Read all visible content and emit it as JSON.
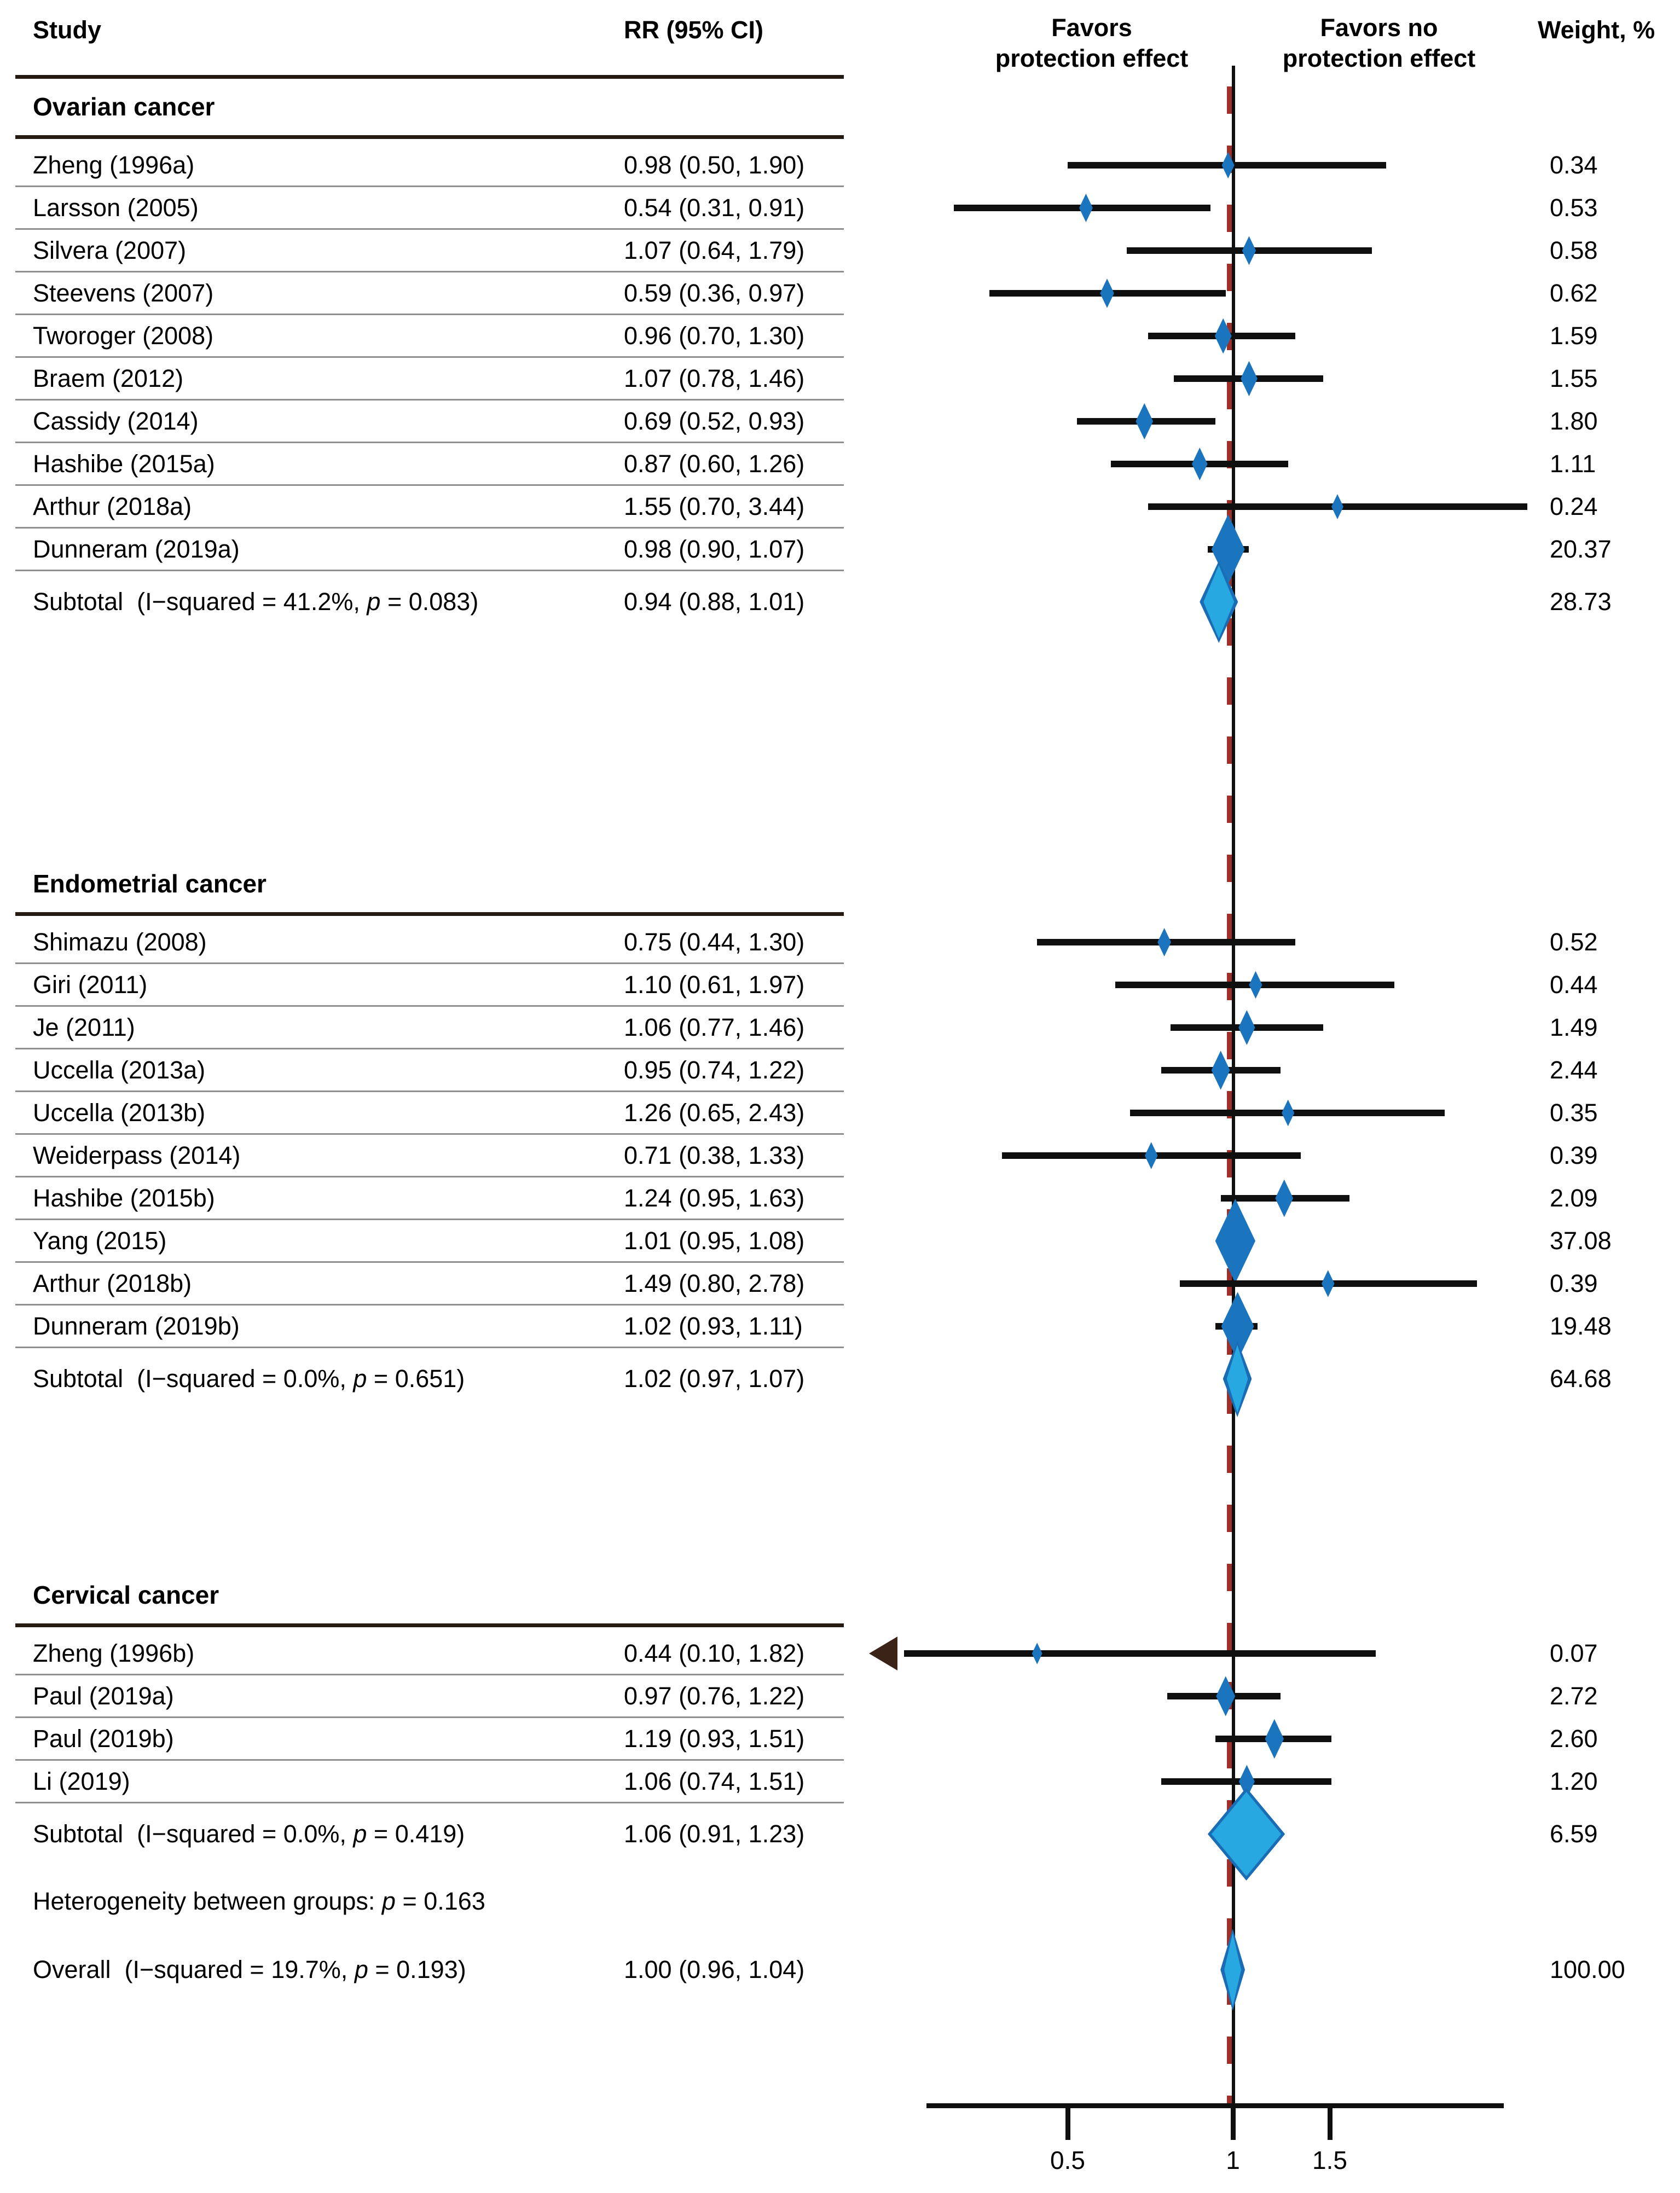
{
  "header": {
    "study": "Study",
    "rr": "RR (95% CI)",
    "favors_left1": "Favors",
    "favors_left2": "protection effect",
    "favors_right1": "Favors no",
    "favors_right2": "protection effect",
    "weight": "Weight, %"
  },
  "footer": {
    "heterogeneity": "Heterogeneity between groups: <i>p</i> = 0.163",
    "overall_label": "Overall  (I−squared = 19.7%, <i>p</i> = 0.193)",
    "overall_rr_text": "1.00 (0.96, 1.04)",
    "overall_weight": "100.00"
  },
  "chart_data": {
    "type": "scatter",
    "variant": "forest-plot",
    "xscale": "log",
    "xlim_drawn": [
      0.28,
      3.11
    ],
    "axis": {
      "ticks": [
        "0.5",
        "1",
        "1.5"
      ],
      "tick_values": [
        0.5,
        1,
        1.5
      ]
    },
    "refline": 1.0,
    "groups": [
      {
        "name": "Ovarian cancer",
        "studies": [
          {
            "label": "Zheng (1996a)",
            "rr_text": "0.98 (0.50, 1.90)",
            "rr": 0.98,
            "lo": 0.5,
            "hi": 1.9,
            "weight": "0.34"
          },
          {
            "label": "Larsson (2005)",
            "rr_text": "0.54 (0.31, 0.91)",
            "rr": 0.54,
            "lo": 0.31,
            "hi": 0.91,
            "weight": "0.53"
          },
          {
            "label": "Silvera (2007)",
            "rr_text": "1.07 (0.64, 1.79)",
            "rr": 1.07,
            "lo": 0.64,
            "hi": 1.79,
            "weight": "0.58"
          },
          {
            "label": "Steevens (2007)",
            "rr_text": "0.59 (0.36, 0.97)",
            "rr": 0.59,
            "lo": 0.36,
            "hi": 0.97,
            "weight": "0.62"
          },
          {
            "label": "Tworoger (2008)",
            "rr_text": "0.96 (0.70, 1.30)",
            "rr": 0.96,
            "lo": 0.7,
            "hi": 1.3,
            "weight": "1.59"
          },
          {
            "label": "Braem (2012)",
            "rr_text": "1.07 (0.78, 1.46)",
            "rr": 1.07,
            "lo": 0.78,
            "hi": 1.46,
            "weight": "1.55"
          },
          {
            "label": "Cassidy (2014)",
            "rr_text": "0.69 (0.52, 0.93)",
            "rr": 0.69,
            "lo": 0.52,
            "hi": 0.93,
            "weight": "1.80"
          },
          {
            "label": "Hashibe (2015a)",
            "rr_text": "0.87 (0.60, 1.26)",
            "rr": 0.87,
            "lo": 0.6,
            "hi": 1.26,
            "weight": "1.11"
          },
          {
            "label": "Arthur (2018a)",
            "rr_text": "1.55 (0.70, 3.44)",
            "rr": 1.55,
            "lo": 0.7,
            "hi": 3.44,
            "weight": "0.24"
          },
          {
            "label": "Dunneram (2019a)",
            "rr_text": "0.98 (0.90, 1.07)",
            "rr": 0.98,
            "lo": 0.9,
            "hi": 1.07,
            "weight": "20.37"
          }
        ],
        "subtotal": {
          "label": "Subtotal  (I−squared = 41.2%, <i>p</i> = 0.083)",
          "rr_text": "0.94 (0.88, 1.01)",
          "rr": 0.94,
          "lo": 0.88,
          "hi": 1.01,
          "weight": "28.73"
        }
      },
      {
        "name": "Endometrial cancer",
        "studies": [
          {
            "label": "Shimazu (2008)",
            "rr_text": "0.75 (0.44, 1.30)",
            "rr": 0.75,
            "lo": 0.44,
            "hi": 1.3,
            "weight": "0.52"
          },
          {
            "label": "Giri (2011)",
            "rr_text": "1.10 (0.61, 1.97)",
            "rr": 1.1,
            "lo": 0.61,
            "hi": 1.97,
            "weight": "0.44"
          },
          {
            "label": "Je (2011)",
            "rr_text": "1.06 (0.77, 1.46)",
            "rr": 1.06,
            "lo": 0.77,
            "hi": 1.46,
            "weight": "1.49"
          },
          {
            "label": "Uccella (2013a)",
            "rr_text": "0.95 (0.74, 1.22)",
            "rr": 0.95,
            "lo": 0.74,
            "hi": 1.22,
            "weight": "2.44"
          },
          {
            "label": "Uccella (2013b)",
            "rr_text": "1.26 (0.65, 2.43)",
            "rr": 1.26,
            "lo": 0.65,
            "hi": 2.43,
            "weight": "0.35"
          },
          {
            "label": "Weiderpass (2014)",
            "rr_text": "0.71 (0.38, 1.33)",
            "rr": 0.71,
            "lo": 0.38,
            "hi": 1.33,
            "weight": "0.39"
          },
          {
            "label": "Hashibe (2015b)",
            "rr_text": "1.24 (0.95, 1.63)",
            "rr": 1.24,
            "lo": 0.95,
            "hi": 1.63,
            "weight": "2.09"
          },
          {
            "label": "Yang (2015)",
            "rr_text": "1.01 (0.95, 1.08)",
            "rr": 1.01,
            "lo": 0.95,
            "hi": 1.08,
            "weight": "37.08"
          },
          {
            "label": "Arthur (2018b)",
            "rr_text": "1.49 (0.80, 2.78)",
            "rr": 1.49,
            "lo": 0.8,
            "hi": 2.78,
            "weight": "0.39"
          },
          {
            "label": "Dunneram (2019b)",
            "rr_text": "1.02 (0.93, 1.11)",
            "rr": 1.02,
            "lo": 0.93,
            "hi": 1.11,
            "weight": "19.48"
          }
        ],
        "subtotal": {
          "label": "Subtotal  (I−squared = 0.0%, <i>p</i> = 0.651)",
          "rr_text": "1.02 (0.97, 1.07)",
          "rr": 1.02,
          "lo": 0.97,
          "hi": 1.07,
          "weight": "64.68"
        }
      },
      {
        "name": "Cervical cancer",
        "studies": [
          {
            "label": "Zheng (1996b)",
            "rr_text": "0.44 (0.10, 1.82)",
            "rr": 0.44,
            "lo": 0.1,
            "hi": 1.82,
            "weight": "0.07"
          },
          {
            "label": "Paul (2019a)",
            "rr_text": "0.97 (0.76, 1.22)",
            "rr": 0.97,
            "lo": 0.76,
            "hi": 1.22,
            "weight": "2.72"
          },
          {
            "label": "Paul (2019b)",
            "rr_text": "1.19 (0.93, 1.51)",
            "rr": 1.19,
            "lo": 0.93,
            "hi": 1.51,
            "weight": "2.60"
          },
          {
            "label": "Li (2019)",
            "rr_text": "1.06 (0.74, 1.51)",
            "rr": 1.06,
            "lo": 0.74,
            "hi": 1.51,
            "weight": "1.20"
          }
        ],
        "subtotal": {
          "label": "Subtotal  (I−squared = 0.0%, <i>p</i> = 0.419)",
          "rr_text": "1.06 (0.91, 1.23)",
          "rr": 1.06,
          "lo": 0.91,
          "hi": 1.23,
          "weight": "6.59"
        }
      }
    ],
    "overall": {
      "rr": 1.0,
      "lo": 0.96,
      "hi": 1.04
    }
  },
  "colors": {
    "marker": "#1b74be",
    "pooled_fill": "#28a8e0",
    "pooled_stroke": "#1a6db4",
    "ci": "#0f0f0f",
    "refline_dashed": "#9e302a",
    "axis": "#0f0f0f",
    "rule": "#241a12",
    "separator": "#8f8f8f",
    "arrow": "#3a2418",
    "text": "#000000"
  }
}
